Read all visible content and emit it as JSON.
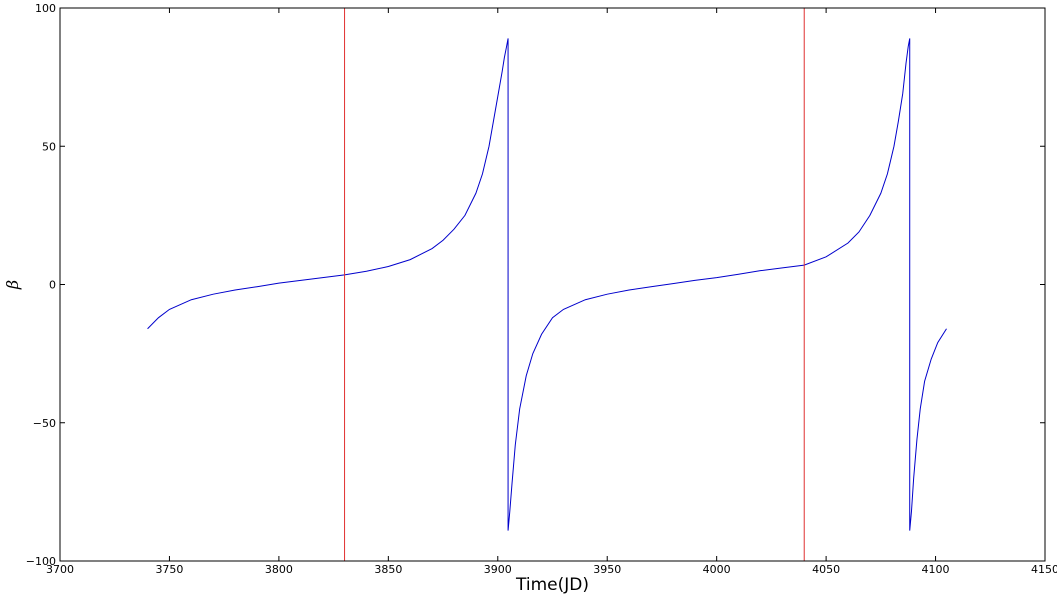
{
  "chart_data": {
    "type": "line",
    "title": "",
    "xlabel": "Time(JD)",
    "ylabel": "β",
    "xlim": [
      3700,
      4150
    ],
    "ylim": [
      -100,
      100
    ],
    "x_ticks": [
      3700,
      3750,
      3800,
      3850,
      3900,
      3950,
      4000,
      4050,
      4100,
      4150
    ],
    "x_tick_labels": [
      "3700",
      "3750",
      "3800",
      "3850",
      "3900",
      "3950",
      "4000",
      "4050",
      "4100",
      "4150"
    ],
    "y_ticks": [
      -100,
      -50,
      0,
      50,
      100
    ],
    "y_tick_labels": [
      "−100",
      "−50",
      "0",
      "50",
      "100"
    ],
    "grid": false,
    "colors": {
      "series": "#0000cc",
      "vlines": "#e03030"
    },
    "vlines": [
      3830,
      4040
    ],
    "series": [
      {
        "x": [
          3740,
          3745,
          3750,
          3760,
          3770,
          3780,
          3790,
          3800,
          3810,
          3820,
          3830,
          3840,
          3850,
          3860,
          3870,
          3875,
          3880,
          3885,
          3890,
          3893,
          3896,
          3898,
          3900,
          3902,
          3903,
          3904,
          3904.7,
          3904.7,
          3905.5,
          3906.5,
          3908,
          3910,
          3913,
          3916,
          3920,
          3925,
          3930,
          3940,
          3950,
          3960,
          3970,
          3980,
          3990,
          4000,
          4010,
          4020,
          4030,
          4040,
          4050,
          4060,
          4065,
          4070,
          4075,
          4078,
          4081,
          4083,
          4085,
          4086.5,
          4087.5,
          4088.2,
          4088.2,
          4089,
          4090,
          4091.5,
          4093,
          4095,
          4098,
          4101,
          4105
        ],
        "y": [
          -16,
          -12,
          -9,
          -5.5,
          -3.5,
          -2,
          -0.8,
          0.5,
          1.5,
          2.5,
          3.5,
          4.8,
          6.5,
          9,
          13,
          16,
          20,
          25,
          33,
          40,
          50,
          59,
          68,
          77,
          82,
          86,
          89,
          -89,
          -82,
          -72,
          -58,
          -45,
          -33,
          -25,
          -18,
          -12,
          -9,
          -5.5,
          -3.5,
          -2,
          -0.8,
          0.3,
          1.5,
          2.5,
          3.7,
          5,
          6,
          7,
          10,
          15,
          19,
          25,
          33,
          40,
          50,
          59,
          69,
          80,
          86,
          89,
          -89,
          -82,
          -70,
          -56,
          -45,
          -35,
          -27,
          -21,
          -16
        ]
      }
    ]
  }
}
